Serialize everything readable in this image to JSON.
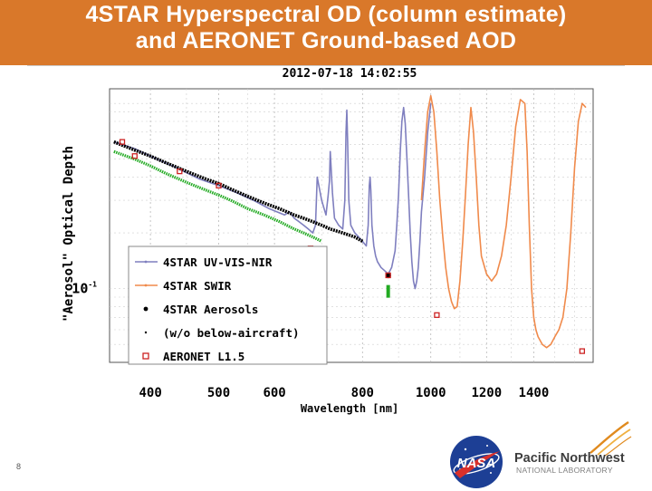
{
  "slide": {
    "title_line1": "4STAR Hyperspectral OD (column estimate)",
    "title_line2": "and AERONET Ground-based AOD",
    "page_number": "8",
    "accent_color": "#d9782a"
  },
  "logos": {
    "nasa_text": "NASA",
    "pnnl_main": "Pacific Northwest",
    "pnnl_sub": "NATIONAL LABORATORY"
  },
  "chart_data": {
    "type": "line",
    "title": "2012-07-18 14:02:55",
    "xlabel": "Wavelength [nm]",
    "ylabel": "\"Aerosol\" Optical Depth",
    "x_scale": "log",
    "y_scale": "log",
    "xlim": [
      350,
      1700
    ],
    "x_ticks": [
      400,
      500,
      600,
      800,
      1000,
      1200,
      1400
    ],
    "y_tick_labels": [
      {
        "base": "10",
        "exp": "-1",
        "value": 0.1
      }
    ],
    "ylim": [
      0.04,
      1.2
    ],
    "grid": true,
    "legend_position": "center-left",
    "legend": [
      {
        "label": "4STAR UV-VIS-NIR",
        "marker": "line",
        "color": "#7f7fbf"
      },
      {
        "label": "4STAR SWIR",
        "marker": "line",
        "color": "#f08a4b"
      },
      {
        "label": "4STAR Aerosols",
        "marker": "dot",
        "color": "#000000"
      },
      {
        "label": "(w/o below-aircraft)",
        "marker": "dot",
        "color": "#22aa22"
      },
      {
        "label": "AERONET L1.5",
        "marker": "square",
        "color": "#cc2222"
      }
    ],
    "series": [
      {
        "name": "4STAR UV-VIS-NIR",
        "color": "#7f7fbf",
        "x": [
          355,
          380,
          400,
          430,
          470,
          500,
          530,
          560,
          590,
          620,
          630,
          640,
          650,
          660,
          670,
          680,
          686,
          688,
          690,
          700,
          710,
          715,
          718,
          720,
          725,
          730,
          740,
          750,
          755,
          758,
          760,
          762,
          765,
          770,
          780,
          790,
          800,
          810,
          815,
          818,
          820,
          822,
          825,
          830,
          835,
          840,
          850,
          860,
          870,
          880,
          890,
          895,
          900,
          905,
          910,
          915,
          920,
          925,
          930,
          935,
          940,
          945,
          950,
          955,
          960,
          965,
          970,
          980,
          990,
          1000
        ],
        "y": [
          0.62,
          0.57,
          0.52,
          0.46,
          0.39,
          0.36,
          0.33,
          0.3,
          0.27,
          0.25,
          0.26,
          0.24,
          0.23,
          0.22,
          0.21,
          0.2,
          0.22,
          0.3,
          0.4,
          0.3,
          0.25,
          0.32,
          0.38,
          0.55,
          0.33,
          0.24,
          0.22,
          0.21,
          0.3,
          0.7,
          0.92,
          0.62,
          0.3,
          0.22,
          0.2,
          0.19,
          0.18,
          0.17,
          0.22,
          0.36,
          0.4,
          0.34,
          0.22,
          0.17,
          0.15,
          0.14,
          0.13,
          0.125,
          0.12,
          0.13,
          0.16,
          0.22,
          0.32,
          0.55,
          0.8,
          0.95,
          0.78,
          0.5,
          0.32,
          0.2,
          0.14,
          0.11,
          0.1,
          0.11,
          0.13,
          0.18,
          0.26,
          0.4,
          0.7,
          1.0
        ]
      },
      {
        "name": "4STAR SWIR",
        "color": "#f08a4b",
        "x": [
          970,
          980,
          990,
          1000,
          1010,
          1020,
          1030,
          1040,
          1050,
          1060,
          1070,
          1080,
          1090,
          1100,
          1110,
          1120,
          1130,
          1140,
          1150,
          1160,
          1170,
          1180,
          1200,
          1220,
          1240,
          1260,
          1280,
          1300,
          1320,
          1340,
          1360,
          1370,
          1380,
          1390,
          1400,
          1410,
          1420,
          1440,
          1460,
          1480,
          1500,
          1520,
          1540,
          1560,
          1580,
          1600,
          1620,
          1640,
          1660
        ],
        "y": [
          0.3,
          0.55,
          0.9,
          1.1,
          0.9,
          0.55,
          0.3,
          0.19,
          0.13,
          0.1,
          0.085,
          0.078,
          0.08,
          0.11,
          0.18,
          0.32,
          0.6,
          0.95,
          0.7,
          0.4,
          0.22,
          0.15,
          0.12,
          0.11,
          0.12,
          0.15,
          0.22,
          0.4,
          0.75,
          1.05,
          1.0,
          0.55,
          0.22,
          0.1,
          0.07,
          0.06,
          0.055,
          0.05,
          0.048,
          0.05,
          0.055,
          0.06,
          0.07,
          0.1,
          0.2,
          0.45,
          0.8,
          1.0,
          0.95
        ]
      },
      {
        "name": "4STAR Aerosols",
        "color": "#000000",
        "x": [
          355,
          380,
          400,
          420,
          450,
          480,
          500,
          520,
          550,
          580,
          610,
          640,
          660,
          680,
          700,
          720,
          750,
          780,
          800,
          870
        ],
        "y": [
          0.62,
          0.56,
          0.52,
          0.48,
          0.43,
          0.39,
          0.37,
          0.345,
          0.315,
          0.29,
          0.27,
          0.25,
          0.24,
          0.23,
          0.22,
          0.21,
          0.2,
          0.19,
          0.18,
          0.118
        ]
      },
      {
        "name": "(w/o below-aircraft)",
        "color": "#22aa22",
        "x": [
          355,
          380,
          400,
          420,
          450,
          480,
          500,
          520,
          550,
          580,
          610,
          640,
          660,
          680,
          700,
          870
        ],
        "y": [
          0.55,
          0.5,
          0.46,
          0.42,
          0.375,
          0.34,
          0.32,
          0.3,
          0.27,
          0.25,
          0.23,
          0.21,
          0.2,
          0.19,
          0.18,
          0.1
        ]
      },
      {
        "name": "AERONET L1.5",
        "color": "#cc2222",
        "x": [
          340,
          380,
          440,
          500,
          675,
          870,
          1020,
          1640
        ],
        "y": [
          0.62,
          0.52,
          0.43,
          0.36,
          0.165,
          0.118,
          0.072,
          0.046
        ]
      }
    ]
  }
}
